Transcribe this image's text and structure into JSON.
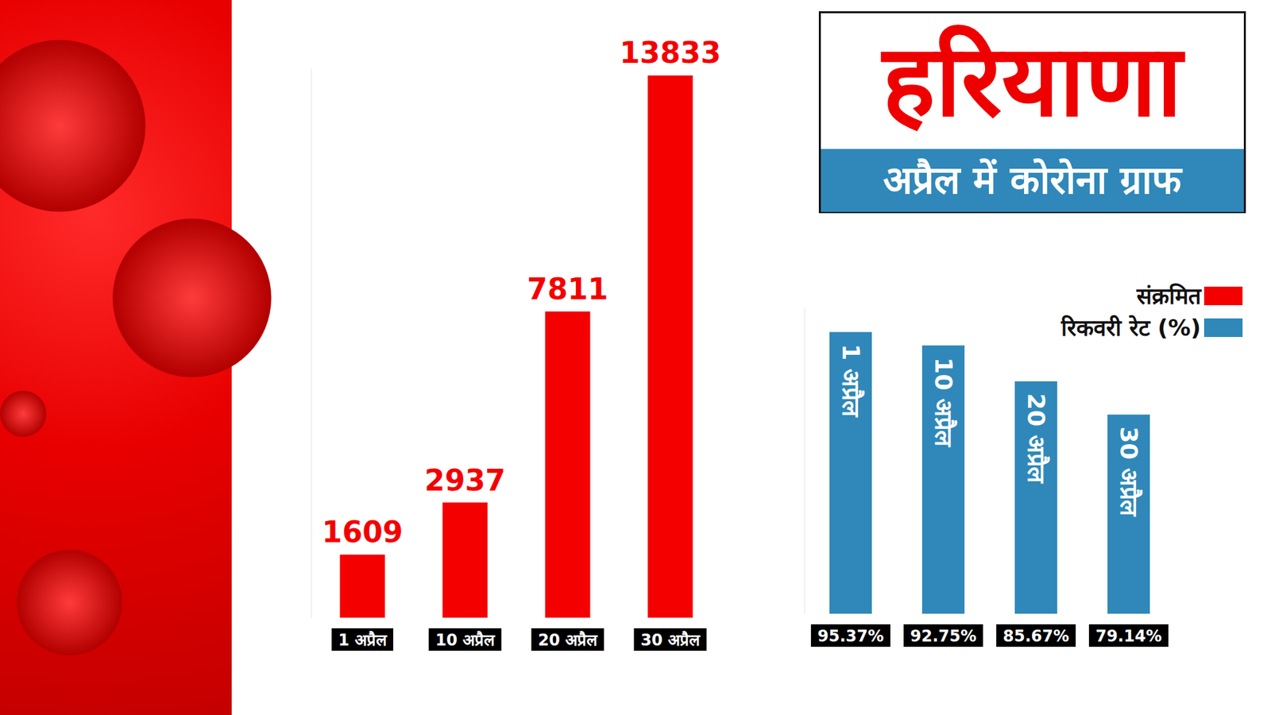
{
  "chart_data": [
    {
      "type": "bar",
      "title": "हरियाणा",
      "subtitle": "अप्रैल में कोरोना ग्राफ",
      "categories": [
        "1 अप्रैल",
        "10 अप्रैल",
        "20 अप्रैल",
        "30 अप्रैल"
      ],
      "series": [
        {
          "name": "संक्रमित",
          "color": "#f40000",
          "values": [
            1609,
            2937,
            7811,
            13833
          ]
        }
      ],
      "ylim": [
        0,
        14000
      ],
      "yticks": [],
      "tick_labels": "x",
      "data_labels": true,
      "grid": false,
      "legend": "upper right"
    },
    {
      "type": "bar",
      "categories": [
        "1 अप्रैल",
        "10 अप्रैल",
        "20 अप्रैल",
        "30 अप्रैल"
      ],
      "series": [
        {
          "name": "रिकवरी रेट (%)",
          "color": "#2f88b9",
          "values": [
            95.37,
            92.75,
            85.67,
            79.14
          ],
          "value_labels": [
            "95.37%",
            "92.75%",
            "85.67%",
            "79.14%"
          ]
        }
      ],
      "ylim": [
        40,
        100
      ],
      "yticks": [],
      "tick_labels": "x",
      "data_labels": true,
      "grid": false
    }
  ]
}
